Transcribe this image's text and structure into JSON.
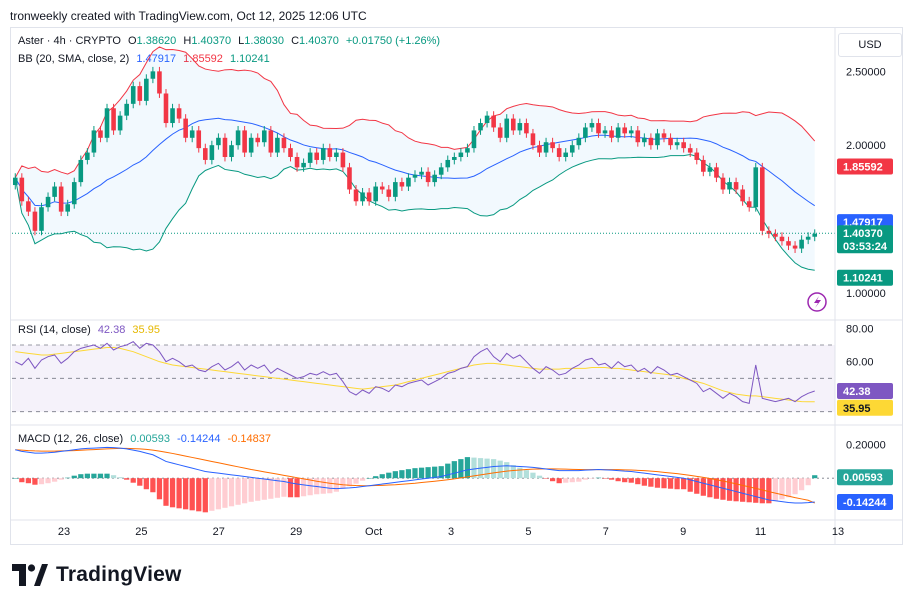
{
  "header": "tronweekly created with TradingView.com, Oct 12, 2025 12:06 UTC",
  "currency": "USD",
  "brand": "TradingView",
  "legend": {
    "symbol": "Aster · 4h · CRYPTO",
    "o_label": "O",
    "o": "1.38620",
    "h_label": "H",
    "h": "1.40370",
    "l_label": "L",
    "l": "1.38030",
    "c_label": "C",
    "c": "1.40370",
    "change": "+0.01750 (+1.26%)",
    "bb_label": "BB (20, SMA, close, 2)",
    "bb_mid": "1.47917",
    "bb_upper": "1.85592",
    "bb_lower": "1.10241",
    "rsi_label": "RSI (14, close)",
    "rsi": "42.38",
    "rsi_ma": "35.95",
    "macd_label": "MACD (12, 26, close)",
    "macd_hist": "0.00593",
    "macd_line": "-0.14244",
    "macd_signal": "-0.14837"
  },
  "badges": {
    "bb_upper": "1.85592",
    "bb_mid": "1.47917",
    "price": "1.40370",
    "countdown": "03:53:24",
    "bb_lower": "1.10241",
    "rsi": "42.38",
    "rsi_ma": "35.95",
    "macd_hist": "0.00593",
    "macd": "-0.14244"
  },
  "colors": {
    "up": "#089981",
    "down": "#f23645",
    "bb_upper": "#f23645",
    "bb_mid": "#2962ff",
    "bb_lower": "#089981",
    "rsi": "#7e57c2",
    "rsi_ma": "#fdd835",
    "macd": "#2962ff",
    "signal": "#ff6d00"
  },
  "chart_data": {
    "type": "candlestick",
    "symbol": "Aster",
    "interval": "4h",
    "x_ticks": [
      "23",
      "25",
      "27",
      "29",
      "Oct",
      "3",
      "5",
      "7",
      "9",
      "11",
      "13"
    ],
    "price_axis": {
      "ticks": [
        "2.50000",
        "2.00000",
        "1.50000",
        "1.00000"
      ],
      "range": [
        0.85,
        2.78
      ]
    },
    "rsi_axis": {
      "ticks": [
        "80.00",
        "60.00"
      ],
      "bands": [
        70,
        50,
        30
      ],
      "range": [
        25,
        85
      ]
    },
    "macd_axis": {
      "ticks": [
        "0.20000"
      ],
      "range": [
        -0.22,
        0.3
      ]
    },
    "close": [
      1.78,
      1.62,
      1.55,
      1.42,
      1.58,
      1.65,
      1.72,
      1.55,
      1.6,
      1.75,
      1.9,
      1.95,
      2.1,
      2.05,
      2.25,
      2.1,
      2.2,
      2.28,
      2.4,
      2.3,
      2.45,
      2.5,
      2.35,
      2.15,
      2.25,
      2.18,
      2.05,
      2.1,
      1.98,
      1.9,
      2.0,
      2.05,
      1.92,
      2.0,
      2.1,
      1.95,
      2.05,
      2.02,
      2.1,
      1.95,
      2.05,
      1.98,
      1.92,
      1.85,
      1.88,
      1.95,
      1.9,
      1.98,
      1.92,
      1.95,
      1.85,
      1.7,
      1.62,
      1.68,
      1.62,
      1.72,
      1.7,
      1.65,
      1.75,
      1.72,
      1.78,
      1.8,
      1.82,
      1.75,
      1.8,
      1.85,
      1.9,
      1.92,
      1.95,
      1.98,
      2.1,
      2.15,
      2.2,
      2.12,
      2.05,
      2.18,
      2.1,
      2.15,
      2.08,
      2.0,
      1.95,
      2.02,
      1.98,
      1.92,
      1.95,
      2.0,
      2.05,
      2.12,
      2.15,
      2.08,
      2.1,
      2.05,
      2.12,
      2.08,
      2.1,
      2.02,
      2.05,
      2.0,
      2.08,
      2.05,
      2.0,
      2.02,
      1.98,
      1.95,
      1.9,
      1.82,
      1.85,
      1.78,
      1.7,
      1.75,
      1.7,
      1.62,
      1.58,
      1.85,
      1.42,
      1.4,
      1.38,
      1.35,
      1.32,
      1.3,
      1.36,
      1.38,
      1.4
    ],
    "rsi": [
      60,
      58,
      62,
      56,
      61,
      63,
      64,
      59,
      62,
      66,
      68,
      69,
      70,
      68,
      71,
      67,
      69,
      70,
      72,
      68,
      71,
      70,
      66,
      60,
      62,
      60,
      57,
      58,
      55,
      54,
      57,
      59,
      55,
      57,
      60,
      55,
      58,
      56,
      58,
      53,
      56,
      54,
      52,
      50,
      51,
      53,
      52,
      54,
      52,
      53,
      48,
      42,
      40,
      43,
      41,
      45,
      44,
      42,
      46,
      45,
      47,
      48,
      49,
      46,
      48,
      50,
      53,
      54,
      56,
      57,
      63,
      66,
      68,
      63,
      60,
      65,
      62,
      64,
      60,
      56,
      53,
      57,
      55,
      52,
      53,
      56,
      58,
      61,
      62,
      58,
      59,
      56,
      60,
      57,
      58,
      54,
      56,
      53,
      57,
      55,
      52,
      53,
      51,
      49,
      47,
      42,
      44,
      41,
      38,
      41,
      39,
      36,
      35,
      58,
      38,
      37,
      36,
      37,
      38,
      36,
      39,
      41,
      42.38
    ],
    "rsi_ma": [
      66,
      65.5,
      65,
      64.5,
      64,
      64,
      64.5,
      65,
      65.5,
      66,
      66.5,
      67,
      67.5,
      68,
      68.5,
      68.5,
      68,
      67,
      66,
      64.5,
      63,
      61.5,
      60,
      59,
      58,
      57.5,
      57,
      56.5,
      56,
      55.5,
      55,
      54.5,
      54,
      53.5,
      53,
      52.5,
      52,
      51.5,
      51,
      50.5,
      50,
      49.5,
      49,
      48.5,
      48,
      47.5,
      47,
      46.5,
      46,
      45.5,
      45,
      44.5,
      44,
      43.5,
      44,
      44.5,
      45,
      45.5,
      46,
      47,
      48,
      49,
      50,
      51,
      52,
      53,
      54,
      55,
      56,
      57,
      58,
      58.5,
      59,
      59,
      58.5,
      58,
      57.5,
      57,
      56.5,
      56,
      55.5,
      55.5,
      55.5,
      55.5,
      56,
      56,
      56,
      56,
      56.5,
      56.5,
      56.5,
      56,
      56,
      55.5,
      55,
      54.5,
      54,
      53.5,
      53,
      52.5,
      52,
      51,
      50,
      49,
      48,
      47,
      45.5,
      44,
      42.5,
      41.5,
      40.5,
      40,
      39.5,
      39.5,
      39,
      38.5,
      38,
      37.5,
      37,
      36.5,
      36,
      35.95,
      35.95
    ],
    "macd": [
      0.17,
      0.16,
      0.155,
      0.15,
      0.15,
      0.152,
      0.155,
      0.16,
      0.165,
      0.17,
      0.175,
      0.178,
      0.18,
      0.182,
      0.184,
      0.183,
      0.18,
      0.175,
      0.168,
      0.16,
      0.15,
      0.14,
      0.12,
      0.1,
      0.09,
      0.08,
      0.07,
      0.06,
      0.05,
      0.04,
      0.035,
      0.03,
      0.025,
      0.02,
      0.015,
      0.01,
      0.005,
      0.0,
      -0.005,
      -0.01,
      -0.015,
      -0.02,
      -0.028,
      -0.035,
      -0.04,
      -0.045,
      -0.05,
      -0.055,
      -0.06,
      -0.062,
      -0.06,
      -0.058,
      -0.055,
      -0.05,
      -0.045,
      -0.04,
      -0.035,
      -0.03,
      -0.025,
      -0.02,
      -0.015,
      -0.01,
      -0.005,
      0.0,
      0.005,
      0.01,
      0.02,
      0.03,
      0.04,
      0.05,
      0.055,
      0.06,
      0.065,
      0.07,
      0.072,
      0.074,
      0.072,
      0.07,
      0.068,
      0.065,
      0.06,
      0.055,
      0.05,
      0.045,
      0.045,
      0.045,
      0.045,
      0.048,
      0.05,
      0.052,
      0.05,
      0.048,
      0.045,
      0.042,
      0.04,
      0.035,
      0.03,
      0.025,
      0.02,
      0.015,
      0.01,
      0.005,
      0.0,
      -0.01,
      -0.02,
      -0.03,
      -0.04,
      -0.05,
      -0.06,
      -0.07,
      -0.08,
      -0.09,
      -0.1,
      -0.11,
      -0.12,
      -0.13,
      -0.135,
      -0.14,
      -0.145,
      -0.148,
      -0.148,
      -0.146,
      -0.14244
    ],
    "signal": [
      0.17,
      0.168,
      0.165,
      0.163,
      0.162,
      0.162,
      0.162,
      0.163,
      0.164,
      0.165,
      0.167,
      0.169,
      0.171,
      0.173,
      0.175,
      0.177,
      0.178,
      0.178,
      0.177,
      0.175,
      0.172,
      0.168,
      0.162,
      0.155,
      0.148,
      0.14,
      0.132,
      0.124,
      0.116,
      0.108,
      0.1,
      0.092,
      0.084,
      0.076,
      0.068,
      0.06,
      0.052,
      0.045,
      0.038,
      0.031,
      0.024,
      0.017,
      0.01,
      0.003,
      -0.004,
      -0.011,
      -0.018,
      -0.024,
      -0.03,
      -0.035,
      -0.039,
      -0.042,
      -0.044,
      -0.045,
      -0.045,
      -0.044,
      -0.043,
      -0.041,
      -0.039,
      -0.036,
      -0.033,
      -0.03,
      -0.026,
      -0.022,
      -0.018,
      -0.014,
      -0.009,
      -0.004,
      0.002,
      0.008,
      0.014,
      0.02,
      0.026,
      0.032,
      0.037,
      0.042,
      0.046,
      0.049,
      0.052,
      0.054,
      0.055,
      0.056,
      0.056,
      0.055,
      0.054,
      0.053,
      0.052,
      0.051,
      0.051,
      0.051,
      0.051,
      0.051,
      0.051,
      0.05,
      0.049,
      0.047,
      0.045,
      0.042,
      0.039,
      0.035,
      0.031,
      0.027,
      0.022,
      0.017,
      0.011,
      0.005,
      -0.002,
      -0.009,
      -0.017,
      -0.025,
      -0.034,
      -0.043,
      -0.052,
      -0.061,
      -0.07,
      -0.08,
      -0.089,
      -0.098,
      -0.107,
      -0.116,
      -0.124,
      -0.132,
      -0.14837
    ],
    "bands": {
      "upper_last": 1.85592,
      "middle_last": 1.47917,
      "lower_last": 1.10241
    }
  }
}
